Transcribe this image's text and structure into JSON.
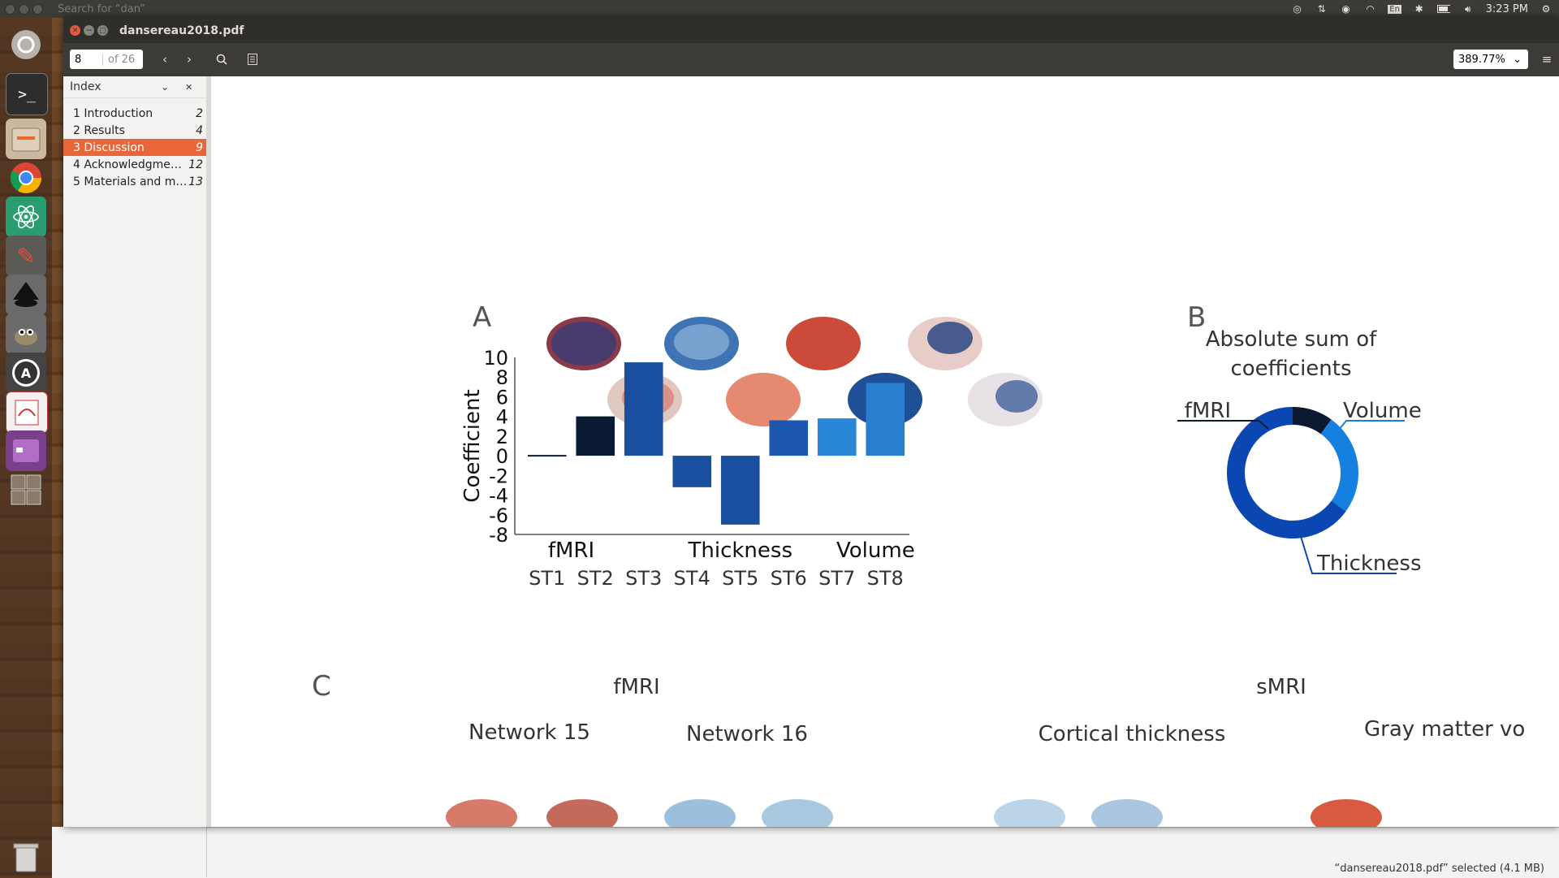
{
  "top_panel": {
    "search": "Search for “dan”",
    "keyboard": "En",
    "time": "3:23 PM"
  },
  "window": {
    "title": "dansereau2018.pdf"
  },
  "toolbar": {
    "page_value": "8",
    "page_total": "of 26",
    "zoom": "389.77%"
  },
  "sidebar": {
    "title": "Index",
    "items": [
      {
        "label": "1 Introduction",
        "page": "2"
      },
      {
        "label": "2 Results",
        "page": "4"
      },
      {
        "label": "3 Discussion",
        "page": "9"
      },
      {
        "label": "4 Acknowledgme…",
        "page": "12"
      },
      {
        "label": "5 Materials and m…",
        "page": "13"
      }
    ]
  },
  "figure": {
    "panel_a": "A",
    "panel_b": "B",
    "panel_c": "C",
    "b_title_line1": "Absolute sum of",
    "b_title_line2": "coefficients",
    "c_fmri": "fMRI",
    "c_smri": "sMRI",
    "c_net15": "Network 15",
    "c_net16": "Network 16",
    "c_cortical": "Cortical thickness",
    "c_gray": "Gray matter vo"
  },
  "chart_data": [
    {
      "type": "bar",
      "ylabel": "Coefficient",
      "ylim": [
        -8,
        10
      ],
      "yticks": [
        10,
        8,
        6,
        4,
        2,
        0,
        -2,
        -4,
        -6,
        -8
      ],
      "categories": [
        "ST1",
        "ST2",
        "ST3",
        "ST4",
        "ST5",
        "ST6",
        "ST7",
        "ST8"
      ],
      "values": [
        0,
        4,
        9.5,
        -3.2,
        -7,
        3.6,
        3.8,
        7.4
      ],
      "colors": [
        "#0a1a33",
        "#0a1a33",
        "#1a4fa0",
        "#1a4fa0",
        "#1a4fa0",
        "#1f56b0",
        "#2a86d6",
        "#2a7ed0"
      ],
      "groups": [
        "fMRI",
        "Thickness",
        "Volume"
      ]
    },
    {
      "type": "pie",
      "title": "Absolute sum of coefficients",
      "categories": [
        "fMRI",
        "Volume",
        "Thickness"
      ],
      "values": [
        0.1,
        0.25,
        0.65
      ],
      "colors": [
        "#0b1a30",
        "#1580e0",
        "#0a47b3"
      ]
    }
  ]
}
